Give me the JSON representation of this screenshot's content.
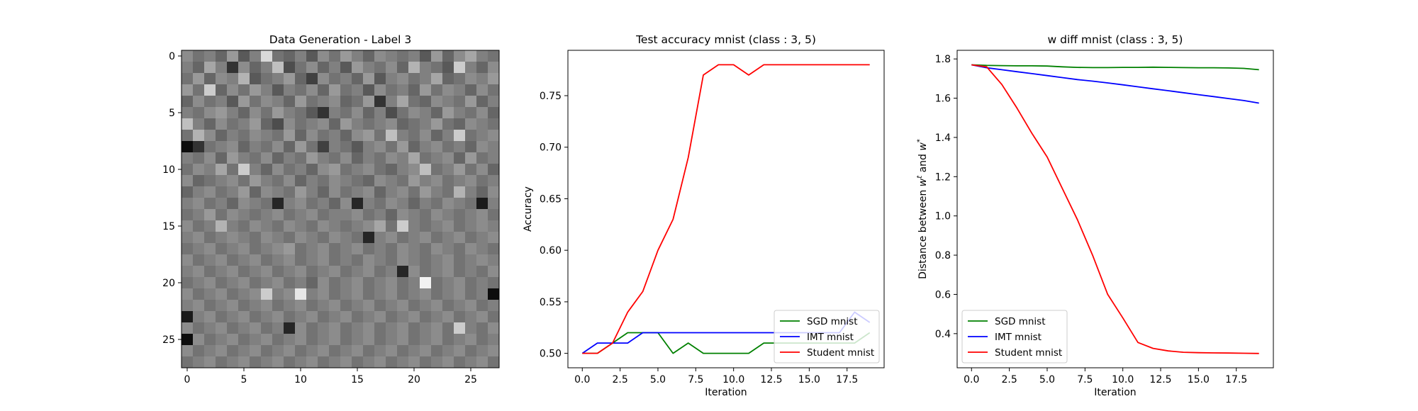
{
  "chart_data": [
    {
      "type": "heatmap",
      "title": "Data Generation - Label 3",
      "rows": 28,
      "cols": 28,
      "xticks": [
        0,
        5,
        10,
        15,
        20,
        25
      ],
      "yticks": [
        0,
        5,
        10,
        15,
        20,
        25
      ],
      "colormap": "gray",
      "values": [
        [
          0.55,
          0.45,
          0.5,
          0.4,
          0.6,
          0.35,
          0.5,
          0.85,
          0.45,
          0.4,
          0.5,
          0.35,
          0.55,
          0.45,
          0.6,
          0.5,
          0.4,
          0.55,
          0.5,
          0.45,
          0.5,
          0.35,
          0.6,
          0.4,
          0.55,
          0.65,
          0.5,
          0.45
        ],
        [
          0.5,
          0.4,
          0.65,
          0.5,
          0.2,
          0.55,
          0.4,
          0.5,
          0.75,
          0.3,
          0.45,
          0.55,
          0.4,
          0.5,
          0.35,
          0.6,
          0.5,
          0.45,
          0.55,
          0.4,
          0.7,
          0.5,
          0.45,
          0.35,
          0.8,
          0.5,
          0.4,
          0.55
        ],
        [
          0.45,
          0.6,
          0.4,
          0.55,
          0.5,
          0.7,
          0.35,
          0.45,
          0.5,
          0.6,
          0.4,
          0.25,
          0.55,
          0.45,
          0.5,
          0.4,
          0.6,
          0.35,
          0.5,
          0.55,
          0.45,
          0.5,
          0.65,
          0.4,
          0.45,
          0.55,
          0.5,
          0.6
        ],
        [
          0.6,
          0.45,
          0.8,
          0.4,
          0.55,
          0.45,
          0.6,
          0.5,
          0.35,
          0.5,
          0.45,
          0.55,
          0.4,
          0.6,
          0.45,
          0.5,
          0.35,
          0.55,
          0.45,
          0.5,
          0.4,
          0.6,
          0.45,
          0.55,
          0.5,
          0.4,
          0.55,
          0.45
        ],
        [
          0.4,
          0.55,
          0.45,
          0.5,
          0.35,
          0.6,
          0.45,
          0.55,
          0.5,
          0.4,
          0.6,
          0.45,
          0.5,
          0.55,
          0.4,
          0.45,
          0.6,
          0.2,
          0.5,
          0.65,
          0.45,
          0.4,
          0.55,
          0.5,
          0.45,
          0.6,
          0.4,
          0.5
        ],
        [
          0.5,
          0.45,
          0.55,
          0.6,
          0.5,
          0.4,
          0.55,
          0.45,
          0.6,
          0.5,
          0.45,
          0.35,
          0.2,
          0.5,
          0.45,
          0.55,
          0.4,
          0.5,
          0.3,
          0.45,
          0.55,
          0.5,
          0.4,
          0.6,
          0.5,
          0.45,
          0.55,
          0.4
        ],
        [
          0.75,
          0.5,
          0.4,
          0.55,
          0.45,
          0.5,
          0.6,
          0.4,
          0.3,
          0.55,
          0.45,
          0.5,
          0.55,
          0.4,
          0.6,
          0.5,
          0.45,
          0.5,
          0.55,
          0.4,
          0.45,
          0.5,
          0.6,
          0.45,
          0.4,
          0.55,
          0.5,
          0.45
        ],
        [
          0.45,
          0.7,
          0.55,
          0.4,
          0.5,
          0.45,
          0.55,
          0.5,
          0.45,
          0.6,
          0.4,
          0.55,
          0.45,
          0.5,
          0.4,
          0.55,
          0.6,
          0.45,
          0.75,
          0.5,
          0.45,
          0.55,
          0.4,
          0.5,
          0.8,
          0.45,
          0.5,
          0.55
        ],
        [
          0.05,
          0.2,
          0.45,
          0.5,
          0.55,
          0.4,
          0.5,
          0.45,
          0.55,
          0.4,
          0.6,
          0.45,
          0.25,
          0.5,
          0.45,
          0.35,
          0.5,
          0.55,
          0.45,
          0.6,
          0.4,
          0.5,
          0.55,
          0.45,
          0.5,
          0.4,
          0.55,
          0.5
        ],
        [
          0.5,
          0.45,
          0.55,
          0.4,
          0.6,
          0.5,
          0.45,
          0.55,
          0.4,
          0.5,
          0.45,
          0.6,
          0.5,
          0.45,
          0.55,
          0.4,
          0.5,
          0.45,
          0.55,
          0.5,
          0.65,
          0.45,
          0.5,
          0.55,
          0.4,
          0.6,
          0.45,
          0.5
        ],
        [
          0.45,
          0.55,
          0.5,
          0.65,
          0.45,
          0.8,
          0.5,
          0.4,
          0.55,
          0.45,
          0.5,
          0.4,
          0.55,
          0.6,
          0.45,
          0.5,
          0.55,
          0.45,
          0.4,
          0.5,
          0.55,
          0.75,
          0.45,
          0.5,
          0.6,
          0.45,
          0.55,
          0.4
        ],
        [
          0.55,
          0.4,
          0.45,
          0.5,
          0.55,
          0.45,
          0.6,
          0.5,
          0.45,
          0.55,
          0.4,
          0.5,
          0.45,
          0.55,
          0.5,
          0.45,
          0.4,
          0.55,
          0.5,
          0.45,
          0.6,
          0.5,
          0.55,
          0.45,
          0.5,
          0.55,
          0.45,
          0.5
        ],
        [
          0.4,
          0.5,
          0.55,
          0.45,
          0.5,
          0.6,
          0.4,
          0.55,
          0.5,
          0.45,
          0.6,
          0.5,
          0.4,
          0.55,
          0.45,
          0.5,
          0.55,
          0.4,
          0.5,
          0.55,
          0.45,
          0.6,
          0.5,
          0.45,
          0.7,
          0.5,
          0.4,
          0.55
        ],
        [
          0.5,
          0.55,
          0.45,
          0.5,
          0.4,
          0.55,
          0.5,
          0.45,
          0.15,
          0.5,
          0.55,
          0.45,
          0.5,
          0.4,
          0.55,
          0.15,
          0.5,
          0.45,
          0.55,
          0.5,
          0.4,
          0.5,
          0.45,
          0.55,
          0.5,
          0.45,
          0.1,
          0.5
        ],
        [
          0.45,
          0.5,
          0.6,
          0.45,
          0.55,
          0.5,
          0.45,
          0.5,
          0.55,
          0.45,
          0.5,
          0.55,
          0.45,
          0.5,
          0.5,
          0.55,
          0.45,
          0.5,
          0.4,
          0.55,
          0.5,
          0.45,
          0.55,
          0.5,
          0.45,
          0.5,
          0.55,
          0.45
        ],
        [
          0.55,
          0.45,
          0.5,
          0.7,
          0.5,
          0.45,
          0.55,
          0.5,
          0.45,
          0.55,
          0.5,
          0.45,
          0.55,
          0.5,
          0.45,
          0.5,
          0.55,
          0.65,
          0.45,
          0.8,
          0.5,
          0.45,
          0.5,
          0.55,
          0.45,
          0.5,
          0.55,
          0.5
        ],
        [
          0.5,
          0.55,
          0.45,
          0.5,
          0.55,
          0.5,
          0.45,
          0.55,
          0.5,
          0.45,
          0.55,
          0.5,
          0.45,
          0.55,
          0.5,
          0.45,
          0.15,
          0.5,
          0.55,
          0.45,
          0.5,
          0.55,
          0.45,
          0.5,
          0.55,
          0.45,
          0.5,
          0.55
        ],
        [
          0.45,
          0.5,
          0.55,
          0.45,
          0.5,
          0.55,
          0.45,
          0.5,
          0.55,
          0.6,
          0.45,
          0.5,
          0.55,
          0.45,
          0.5,
          0.55,
          0.45,
          0.5,
          0.45,
          0.55,
          0.5,
          0.45,
          0.55,
          0.5,
          0.45,
          0.55,
          0.5,
          0.45
        ],
        [
          0.55,
          0.45,
          0.5,
          0.55,
          0.45,
          0.5,
          0.55,
          0.45,
          0.5,
          0.55,
          0.45,
          0.5,
          0.55,
          0.45,
          0.5,
          0.45,
          0.55,
          0.5,
          0.45,
          0.55,
          0.5,
          0.45,
          0.5,
          0.55,
          0.45,
          0.5,
          0.55,
          0.5
        ],
        [
          0.5,
          0.55,
          0.45,
          0.5,
          0.55,
          0.45,
          0.5,
          0.55,
          0.45,
          0.5,
          0.55,
          0.45,
          0.5,
          0.55,
          0.45,
          0.5,
          0.55,
          0.45,
          0.5,
          0.15,
          0.55,
          0.45,
          0.5,
          0.55,
          0.45,
          0.5,
          0.45,
          0.55
        ],
        [
          0.45,
          0.5,
          0.55,
          0.45,
          0.5,
          0.55,
          0.45,
          0.5,
          0.55,
          0.45,
          0.5,
          0.4,
          0.55,
          0.45,
          0.5,
          0.55,
          0.45,
          0.5,
          0.55,
          0.45,
          0.5,
          0.95,
          0.45,
          0.5,
          0.55,
          0.45,
          0.5,
          0.45
        ],
        [
          0.55,
          0.45,
          0.5,
          0.55,
          0.45,
          0.5,
          0.55,
          0.8,
          0.5,
          0.55,
          0.9,
          0.5,
          0.55,
          0.45,
          0.5,
          0.55,
          0.45,
          0.5,
          0.55,
          0.45,
          0.5,
          0.55,
          0.45,
          0.5,
          0.55,
          0.45,
          0.5,
          0.05
        ],
        [
          0.5,
          0.55,
          0.45,
          0.5,
          0.55,
          0.45,
          0.5,
          0.55,
          0.45,
          0.5,
          0.55,
          0.45,
          0.5,
          0.55,
          0.45,
          0.5,
          0.55,
          0.45,
          0.5,
          0.55,
          0.45,
          0.5,
          0.55,
          0.45,
          0.5,
          0.55,
          0.45,
          0.5
        ],
        [
          0.1,
          0.5,
          0.55,
          0.45,
          0.5,
          0.55,
          0.45,
          0.5,
          0.55,
          0.45,
          0.5,
          0.55,
          0.45,
          0.5,
          0.55,
          0.45,
          0.5,
          0.55,
          0.45,
          0.5,
          0.55,
          0.45,
          0.5,
          0.55,
          0.45,
          0.5,
          0.55,
          0.45
        ],
        [
          0.55,
          0.45,
          0.5,
          0.55,
          0.45,
          0.5,
          0.55,
          0.45,
          0.5,
          0.15,
          0.55,
          0.45,
          0.5,
          0.55,
          0.45,
          0.5,
          0.55,
          0.45,
          0.5,
          0.55,
          0.45,
          0.5,
          0.55,
          0.45,
          0.8,
          0.5,
          0.45,
          0.55
        ],
        [
          0.05,
          0.55,
          0.45,
          0.5,
          0.55,
          0.45,
          0.5,
          0.55,
          0.45,
          0.5,
          0.55,
          0.45,
          0.5,
          0.55,
          0.45,
          0.5,
          0.55,
          0.45,
          0.5,
          0.55,
          0.45,
          0.5,
          0.55,
          0.45,
          0.5,
          0.55,
          0.45,
          0.5
        ],
        [
          0.55,
          0.45,
          0.5,
          0.55,
          0.45,
          0.5,
          0.55,
          0.45,
          0.5,
          0.55,
          0.45,
          0.5,
          0.55,
          0.45,
          0.5,
          0.55,
          0.45,
          0.5,
          0.55,
          0.45,
          0.5,
          0.55,
          0.45,
          0.5,
          0.55,
          0.45,
          0.5,
          0.55
        ],
        [
          0.45,
          0.5,
          0.55,
          0.45,
          0.5,
          0.55,
          0.45,
          0.5,
          0.55,
          0.45,
          0.5,
          0.55,
          0.45,
          0.5,
          0.55,
          0.45,
          0.5,
          0.55,
          0.45,
          0.5,
          0.55,
          0.45,
          0.5,
          0.55,
          0.45,
          0.5,
          0.55,
          0.45
        ]
      ]
    },
    {
      "type": "line",
      "title": "Test accuracy mnist (class : 3, 5)",
      "xlabel": "Iteration",
      "ylabel": "Accuracy",
      "xlim": [
        -0.95,
        19.95
      ],
      "ylim": [
        0.486,
        0.794
      ],
      "xticks": [
        0.0,
        2.5,
        5.0,
        7.5,
        10.0,
        12.5,
        15.0,
        17.5
      ],
      "xtick_labels": [
        "0.0",
        "2.5",
        "5.0",
        "7.5",
        "10.0",
        "12.5",
        "15.0",
        "17.5"
      ],
      "yticks": [
        0.5,
        0.55,
        0.6,
        0.65,
        0.7,
        0.75
      ],
      "ytick_labels": [
        "0.50",
        "0.55",
        "0.60",
        "0.65",
        "0.70",
        "0.75"
      ],
      "legend": "lower-right",
      "x": [
        0,
        1,
        2,
        3,
        4,
        5,
        6,
        7,
        8,
        9,
        10,
        11,
        12,
        13,
        14,
        15,
        16,
        17,
        18,
        19
      ],
      "series": [
        {
          "name": "SGD mnist",
          "color": "#008000",
          "values": [
            0.5,
            0.5,
            0.51,
            0.52,
            0.52,
            0.52,
            0.5,
            0.51,
            0.5,
            0.5,
            0.5,
            0.5,
            0.51,
            0.51,
            0.51,
            0.51,
            0.51,
            0.51,
            0.51,
            0.52
          ]
        },
        {
          "name": "IMT mnist",
          "color": "#0000ff",
          "values": [
            0.5,
            0.51,
            0.51,
            0.51,
            0.52,
            0.52,
            0.52,
            0.52,
            0.52,
            0.52,
            0.52,
            0.52,
            0.52,
            0.52,
            0.52,
            0.52,
            0.52,
            0.52,
            0.54,
            0.53
          ]
        },
        {
          "name": "Student mnist",
          "color": "#ff0000",
          "values": [
            0.5,
            0.5,
            0.51,
            0.54,
            0.56,
            0.6,
            0.63,
            0.69,
            0.77,
            0.78,
            0.78,
            0.77,
            0.78,
            0.78,
            0.78,
            0.78,
            0.78,
            0.78,
            0.78,
            0.78
          ]
        }
      ]
    },
    {
      "type": "line",
      "title": "w diff mnist (class : 3, 5)",
      "xlabel": "Iteration",
      "ylabel": "Distance between w^t and w^*",
      "ylabel_main": "Distance between ",
      "ylabel_w": "w",
      "ylabel_sup_t": "t",
      "ylabel_and": " and ",
      "ylabel_sup_star": "*",
      "xlim": [
        -0.95,
        19.95
      ],
      "ylim": [
        0.226,
        1.844
      ],
      "xticks": [
        0.0,
        2.5,
        5.0,
        7.5,
        10.0,
        12.5,
        15.0,
        17.5
      ],
      "xtick_labels": [
        "0.0",
        "2.5",
        "5.0",
        "7.5",
        "10.0",
        "12.5",
        "15.0",
        "17.5"
      ],
      "yticks": [
        0.4,
        0.6,
        0.8,
        1.0,
        1.2,
        1.4,
        1.6,
        1.8
      ],
      "ytick_labels": [
        "0.4",
        "0.6",
        "0.8",
        "1.0",
        "1.2",
        "1.4",
        "1.6",
        "1.8"
      ],
      "legend": "lower-left",
      "x": [
        0,
        1,
        2,
        3,
        4,
        5,
        6,
        7,
        8,
        9,
        10,
        11,
        12,
        13,
        14,
        15,
        16,
        17,
        18,
        19
      ],
      "series": [
        {
          "name": "SGD mnist",
          "color": "#008000",
          "values": [
            1.77,
            1.767,
            1.766,
            1.765,
            1.765,
            1.764,
            1.76,
            1.757,
            1.756,
            1.756,
            1.757,
            1.757,
            1.758,
            1.757,
            1.756,
            1.755,
            1.755,
            1.754,
            1.752,
            1.745
          ]
        },
        {
          "name": "IMT mnist",
          "color": "#0000ff",
          "values": [
            1.77,
            1.755,
            1.745,
            1.735,
            1.725,
            1.715,
            1.705,
            1.695,
            1.687,
            1.678,
            1.668,
            1.658,
            1.648,
            1.638,
            1.628,
            1.618,
            1.608,
            1.598,
            1.588,
            1.575
          ]
        },
        {
          "name": "Student mnist",
          "color": "#ff0000",
          "values": [
            1.77,
            1.76,
            1.67,
            1.55,
            1.42,
            1.3,
            1.14,
            0.98,
            0.8,
            0.6,
            0.48,
            0.355,
            0.325,
            0.312,
            0.305,
            0.303,
            0.302,
            0.301,
            0.3,
            0.299
          ]
        }
      ]
    }
  ]
}
